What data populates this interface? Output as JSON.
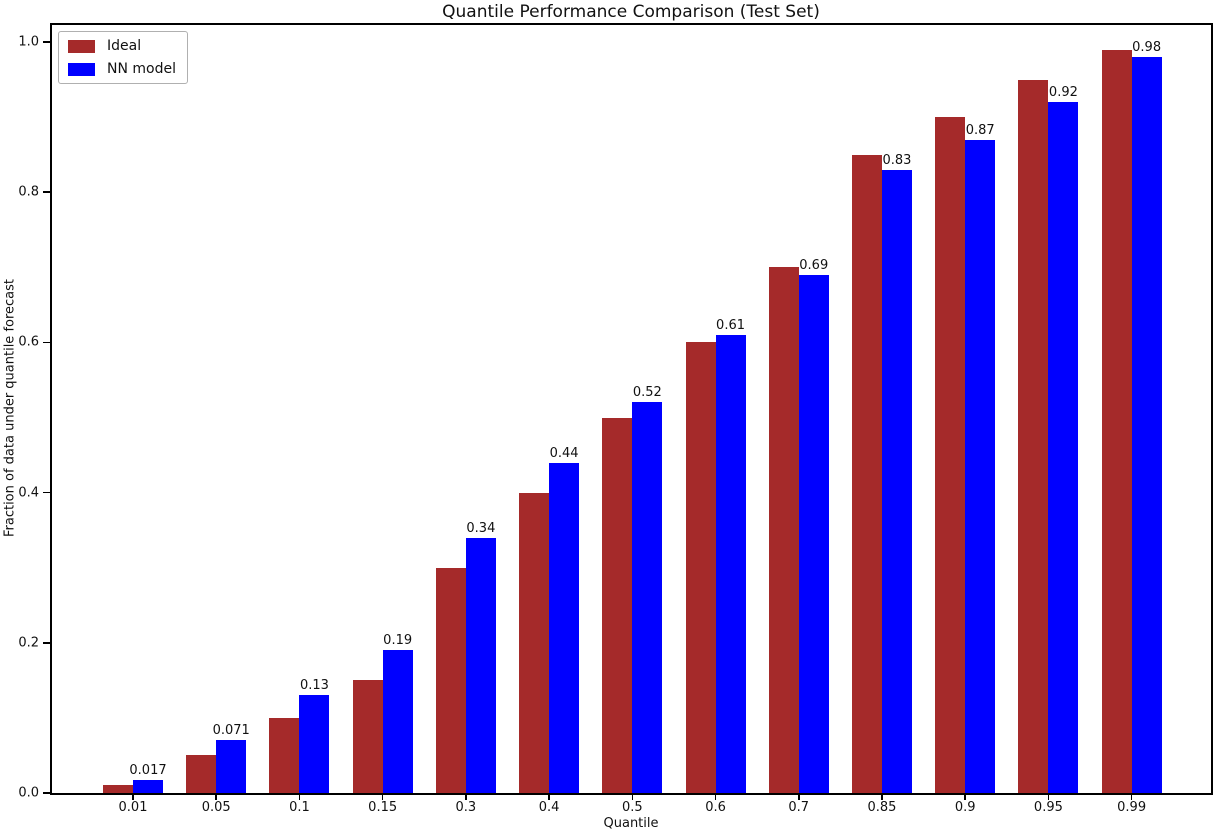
{
  "chart_data": {
    "type": "bar",
    "title": "Quantile Performance Comparison (Test Set)",
    "xlabel": "Quantile",
    "ylabel": "Fraction of data under quantile forecast",
    "categories": [
      "0.01",
      "0.05",
      "0.1",
      "0.15",
      "0.3",
      "0.4",
      "0.5",
      "0.6",
      "0.7",
      "0.85",
      "0.9",
      "0.95",
      "0.99"
    ],
    "series": [
      {
        "name": "Ideal",
        "color": "#A52A2A",
        "values": [
          0.01,
          0.05,
          0.1,
          0.15,
          0.3,
          0.4,
          0.5,
          0.6,
          0.7,
          0.85,
          0.9,
          0.95,
          0.99
        ]
      },
      {
        "name": "NN model",
        "color": "#0000FF",
        "values": [
          0.017,
          0.071,
          0.13,
          0.19,
          0.34,
          0.44,
          0.52,
          0.61,
          0.69,
          0.83,
          0.87,
          0.92,
          0.98
        ],
        "bar_labels": [
          "0.017",
          "0.071",
          "0.13",
          "0.19",
          "0.34",
          "0.44",
          "0.52",
          "0.61",
          "0.69",
          "0.83",
          "0.87",
          "0.92",
          "0.98"
        ]
      }
    ],
    "yticks": [
      "0.0",
      "0.2",
      "0.4",
      "0.6",
      "0.8",
      "1.0"
    ],
    "ylim": [
      0,
      1.025
    ],
    "grid": false,
    "legend_position": "upper left",
    "background": "#ffffff"
  }
}
